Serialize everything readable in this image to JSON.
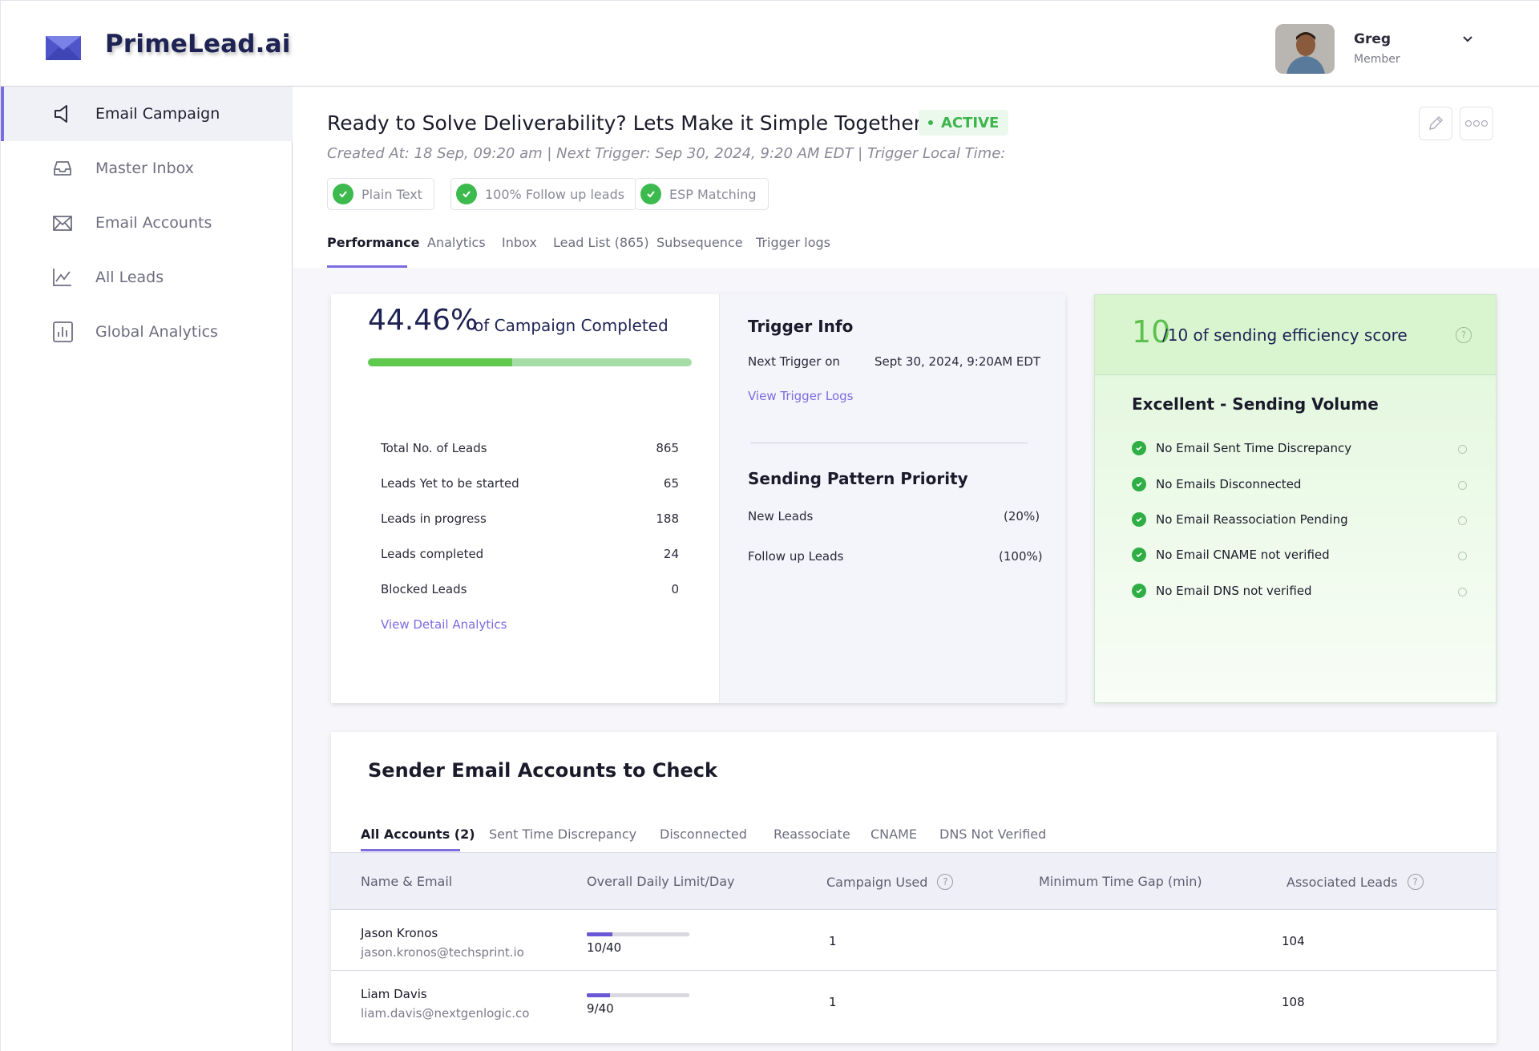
{
  "app": {
    "name": "PrimeLead.ai"
  },
  "user": {
    "name": "Greg",
    "role": "Member"
  },
  "sidebar": {
    "items": [
      {
        "label": "Email Campaign",
        "icon": "megaphone-icon",
        "active": true
      },
      {
        "label": "Master Inbox",
        "icon": "inbox-icon"
      },
      {
        "label": "Email Accounts",
        "icon": "envelope-icon"
      },
      {
        "label": "All Leads",
        "icon": "line-chart-icon"
      },
      {
        "label": "Global Analytics",
        "icon": "bar-chart-icon"
      }
    ]
  },
  "campaign": {
    "title": "Ready to Solve Deliverability? Lets Make it Simple Together.",
    "status": "ACTIVE",
    "meta": "Created At: 18 Sep, 09:20 am | Next Trigger: Sep 30, 2024, 9:20 AM EDT | Trigger Local Time:",
    "tags": [
      "Plain Text",
      "100% Follow up leads",
      "ESP Matching"
    ]
  },
  "tabs": [
    "Performance",
    "Analytics",
    "Inbox",
    "Lead List (865)",
    "Subsequence",
    "Trigger logs"
  ],
  "progress": {
    "percent_text": "44.46%",
    "percent_value": 44.46,
    "label": "of Campaign Completed",
    "stats": [
      {
        "label": "Total No. of Leads",
        "value": "865"
      },
      {
        "label": "Leads Yet to be started",
        "value": "65"
      },
      {
        "label": "Leads in progress",
        "value": "188"
      },
      {
        "label": "Leads completed",
        "value": "24"
      },
      {
        "label": "Blocked Leads",
        "value": "0"
      }
    ],
    "link": "View Detail Analytics"
  },
  "trigger": {
    "title": "Trigger Info",
    "next_label": "Next Trigger on",
    "next_value": "Sept 30, 2024, 9:20AM EDT",
    "logs_link": "View Trigger Logs",
    "pattern_title": "Sending Pattern Priority",
    "patterns": [
      {
        "label": "New Leads",
        "value": "(20%)"
      },
      {
        "label": "Follow up Leads",
        "value": "(100%)"
      }
    ]
  },
  "efficiency": {
    "score": "10",
    "suffix": "/10 of sending efficiency score",
    "subtitle": "Excellent - Sending Volume",
    "checks": [
      "No Email Sent Time Discrepancy",
      "No Emails Disconnected",
      "No Email Reassociation Pending",
      "No Email CNAME not verified",
      "No Email DNS not verified"
    ],
    "accent": "#5ec04e"
  },
  "accounts": {
    "title": "Sender Email Accounts to Check",
    "tabs": [
      "All Accounts (2)",
      "Sent Time Discrepancy",
      "Disconnected",
      "Reassociate",
      "CNAME",
      "DNS Not Verified"
    ],
    "columns": [
      "Name & Email",
      "Overall Daily Limit/Day",
      "Campaign Used",
      "Minimum Time Gap (min)",
      "Associated Leads"
    ],
    "rows": [
      {
        "name": "Jason Kronos",
        "email": "jason.kronos@techsprint.io",
        "limit": "10/40",
        "limit_fraction": 0.25,
        "used": "1",
        "gap": "",
        "leads": "104"
      },
      {
        "name": "Liam Davis",
        "email": "liam.davis@nextgenlogic.co",
        "limit": "9/40",
        "limit_fraction": 0.225,
        "used": "1",
        "gap": "",
        "leads": "108"
      }
    ]
  },
  "colors": {
    "brand": "#7b6ce0",
    "navy": "#1f2354",
    "success": "#3cb54c"
  }
}
